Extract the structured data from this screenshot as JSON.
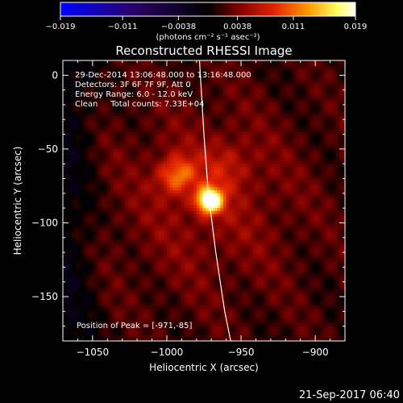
{
  "chart_data": {
    "type": "heatmap",
    "title": "Reconstructed RHESSI Image",
    "xlabel": "Heliocentric X (arcsec)",
    "ylabel": "Heliocentric Y (arcsec)",
    "xlim": [
      -1070,
      -880
    ],
    "ylim": [
      -180,
      10
    ],
    "x_ticks": [
      -1050,
      -1000,
      -950,
      -900
    ],
    "y_ticks": [
      0,
      -50,
      -100,
      -150
    ],
    "colorbar": {
      "range": [
        -0.019,
        0.019
      ],
      "tick_values": [
        -0.019,
        -0.011,
        -0.0038,
        0.0038,
        0.011,
        0.019
      ],
      "tick_labels": [
        "−0.019",
        "−0.011",
        "−0.0038",
        "0.0038",
        "0.011",
        "0.019"
      ],
      "unit_label": "(photons cm⁻² s⁻¹ asec⁻²)",
      "colors": [
        "#0000ff",
        "#2a0066",
        "#000000",
        "#7a0000",
        "#e02000",
        "#ff9a00",
        "#ffff66",
        "#ffffff"
      ]
    },
    "annotations": [
      "29-Dec-2014 13:06:48.000 to 13:16:48.000",
      "Detectors: 3F 6F 7F 9F, Att 0",
      "Energy Range: 6.0 - 12.0 keV",
      "Clean     Total counts: 7.33E+04"
    ],
    "peak_label": "Position of Peak = [-971,-85]",
    "peak": {
      "x": -971,
      "y": -85,
      "value": 0.019
    },
    "secondary_sources": [
      {
        "x": -993,
        "y": -68,
        "value": 0.008
      },
      {
        "x": -960,
        "y": -62,
        "value": 0.003
      }
    ],
    "limb_curve": [
      [
        -978,
        10
      ],
      [
        -975,
        -40
      ],
      [
        -972,
        -80
      ],
      [
        -967,
        -120
      ],
      [
        -961,
        -160
      ],
      [
        -957,
        -180
      ]
    ]
  },
  "timestamp": "21-Sep-2017 06:40"
}
